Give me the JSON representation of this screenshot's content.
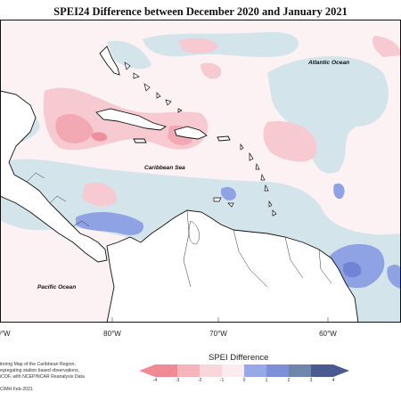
{
  "title": "SPEI24 Difference between December 2020 and January 2021",
  "labels": {
    "atlantic": "Atlantic Ocean",
    "caribbean": "Caribbean Sea",
    "pacific": "Pacific Ocean"
  },
  "longitude_ticks": [
    "0°W",
    "80°W",
    "70°W",
    "60°W"
  ],
  "credit_lines": [
    "itoring Map of the Caribbean Region.",
    "egregating station based observations,",
    "iCOF, with NCEP/NCAR Reanalysis Data"
  ],
  "credit_footer": "CIMH Feb-2021",
  "legend": {
    "title": "SPEI Difference",
    "ticks": [
      "-4",
      "-3",
      "-2",
      "-1",
      "0",
      "1",
      "2",
      "3",
      "4"
    ],
    "colors": [
      "#f08a95",
      "#f5b5bd",
      "#f9d6dc",
      "#fcebee",
      "#d5e6ec",
      "#98a8e6",
      "#7c8fd8",
      "#6f85ac",
      "#4a5a90"
    ]
  }
}
